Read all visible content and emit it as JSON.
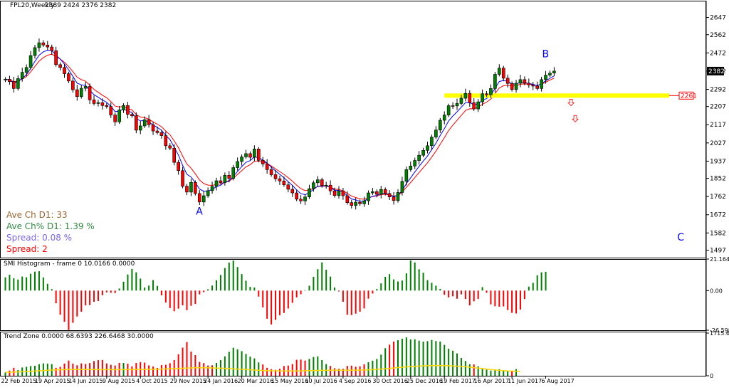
{
  "chart_data": [
    {
      "type": "candlestick",
      "title": "FPL20,Weekly",
      "ohlc_readout": "2389 2424 2376 2382",
      "ylim": [
        1460,
        2730
      ],
      "y_ticks": [
        "2647",
        "2562",
        "2472",
        "2382",
        "2292",
        "2207",
        "2117",
        "2027",
        "1937",
        "1852",
        "1762",
        "1672",
        "1582",
        "1497"
      ],
      "y_tick_values": [
        2647,
        2562,
        2472,
        2382,
        2292,
        2207,
        2117,
        2027,
        1937,
        1852,
        1762,
        1672,
        1582,
        1497
      ],
      "x_ticks": [
        "22 Feb 2015",
        "19 Apr 2015",
        "14 Jun 2015",
        "9 Aug 2015",
        "4 Oct 2015",
        "29 Nov 2015",
        "24 Jan 2016",
        "20 Mar 2016",
        "15 May 2016",
        "10 Jul 2016",
        "4 Sep 2016",
        "30 Oct 2016",
        "25 Dec 2016",
        "19 Feb 2017",
        "16 Apr 2017",
        "11 Jun 2017",
        "6 Aug 2017"
      ],
      "x_tick_bar_index": [
        0,
        8,
        16,
        24,
        32,
        40,
        48,
        56,
        64,
        72,
        80,
        88,
        96,
        104,
        112,
        120,
        128
      ],
      "current_price_label": "2382",
      "current_price": 2382,
      "level_label": "2261",
      "level_value": 2261,
      "level_color": "#ffff00",
      "level_start_bar": 104,
      "pivot_labels": [
        {
          "text": "A",
          "bar": 46,
          "price": 1672
        },
        {
          "text": "B",
          "bar": 128,
          "price": 2450
        },
        {
          "text": "C",
          "bar": 160,
          "price": 1545
        }
      ],
      "arrows": [
        {
          "bar": 134,
          "price": 2225
        },
        {
          "bar": 135,
          "price": 2145
        }
      ],
      "bull_color": "#008000",
      "bear_color": "#ff0000",
      "ma_fast_color": "#0000ff",
      "ma_slow_color": "#ff0000",
      "close": [
        2342,
        2330,
        2296,
        2345,
        2376,
        2400,
        2459,
        2498,
        2522,
        2511,
        2501,
        2483,
        2414,
        2400,
        2369,
        2333,
        2290,
        2256,
        2297,
        2306,
        2240,
        2222,
        2226,
        2212,
        2207,
        2165,
        2131,
        2190,
        2212,
        2168,
        2161,
        2090,
        2111,
        2142,
        2117,
        2086,
        2078,
        2063,
        2013,
        2001,
        1931,
        1890,
        1813,
        1784,
        1832,
        1777,
        1735,
        1766,
        1791,
        1812,
        1840,
        1831,
        1867,
        1852,
        1905,
        1935,
        1958,
        1974,
        1956,
        1997,
        1941,
        1923,
        1895,
        1870,
        1850,
        1839,
        1820,
        1798,
        1780,
        1749,
        1740,
        1760,
        1801,
        1830,
        1845,
        1816,
        1818,
        1790,
        1767,
        1790,
        1766,
        1732,
        1718,
        1734,
        1726,
        1741,
        1780,
        1786,
        1773,
        1797,
        1777,
        1760,
        1742,
        1782,
        1837,
        1895,
        1913,
        1940,
        1966,
        1990,
        2013,
        2056,
        2091,
        2139,
        2165,
        2211,
        2210,
        2222,
        2248,
        2272,
        2226,
        2195,
        2230,
        2270,
        2265,
        2296,
        2366,
        2397,
        2347,
        2321,
        2291,
        2322,
        2340,
        2322,
        2314,
        2308,
        2296,
        2340,
        2362,
        2372,
        2382
      ],
      "panes": [
        {
          "title": "SMI Histogram - frame 0 10.0166 0.0000",
          "ylim": [
            -26.5988,
            21.1645
          ],
          "y_ticks": [
            "21.1645",
            "0.00",
            "-26.5988"
          ],
          "y_tick_values": [
            21.1645,
            0,
            -26.5988
          ],
          "values": [
            8.89,
            10.64,
            8.24,
            7.43,
            9.42,
            8.93,
            11.3,
            12.72,
            12.99,
            8.82,
            4.55,
            0.98,
            -8.53,
            -16.23,
            -20.96,
            -26.46,
            -21.65,
            -17.39,
            -14.2,
            -9.93,
            -9.75,
            -7.57,
            -7.01,
            -3.15,
            -1.19,
            -1.5,
            -1.68,
            1.4,
            5.99,
            10.81,
            14.56,
            12.26,
            8.06,
            2.09,
            3.37,
            7.05,
            3.14,
            -3.2,
            -8.02,
            -11.73,
            -13.85,
            -12.12,
            -9.91,
            -13.15,
            -10.22,
            -8.98,
            -2.55,
            -1.09,
            0.91,
            3.37,
            6.91,
            10.49,
            15.21,
            18.8,
            20.11,
            15.78,
            11.09,
            6.65,
            2.49,
            2.08,
            -4.02,
            -11.34,
            -18.89,
            -22.75,
            -19.64,
            -16.6,
            -15.04,
            -12.03,
            -8.25,
            -4.55,
            -2.45,
            0.28,
            3.23,
            9.26,
            14.38,
            18.96,
            13.99,
            9.42,
            2.05,
            -0.58,
            -7.52,
            -16.25,
            -16.43,
            -15.49,
            -14.18,
            -11.98,
            -5.41,
            -1.97,
            1.04,
            4.84,
            9.24,
            11.05,
            7.51,
            6.13,
            6.74,
            11.58,
            20.26,
            18.9,
            14.33,
            11.97,
            7.02,
            5.22,
            3.35,
            1.14,
            -2.84,
            -4.58,
            -3.84,
            -5.46,
            -2.55,
            -5.68,
            -9.94,
            -7.21,
            -5.64,
            2.33,
            -1.46,
            -9.28,
            -10.51,
            -10.82,
            -10.63,
            -13.06,
            -14.95,
            -15.38,
            -12.73,
            -5.66,
            2.68,
            5.19,
            10.26,
            12.27,
            12.63
          ]
        },
        {
          "title": "Trend Zone 0.0000 68.6393 226.6468 30.0000",
          "ylim": [
            0,
            1715.634
          ],
          "y_ticks": [
            "1715.634",
            "0"
          ],
          "y_tick_values": [
            1715.634,
            0
          ],
          "signal_color": "#ffd700",
          "values": [
            134.2,
            208.5,
            319.3,
            230.4,
            332.8,
            360.3,
            393.6,
            399.8,
            465.1,
            498.3,
            488.4,
            469.8,
            320.1,
            357.4,
            491.0,
            610.2,
            490.0,
            421.2,
            498.4,
            474.8,
            511.3,
            590.0,
            626.5,
            634.0,
            495.8,
            441.2,
            410.9,
            518.7,
            512.4,
            485.1,
            379.6,
            512.4,
            551.7,
            528.3,
            416.5,
            370.4,
            315.9,
            428.2,
            441.8,
            504.1,
            629.8,
            863.6,
            1128.9,
            1356.4,
            969.8,
            829.4,
            557.3,
            509.7,
            410.9,
            421.1,
            513.3,
            630.4,
            780.5,
            962.6,
            1126.3,
            1062.2,
            990.2,
            876.8,
            768.4,
            699.0,
            536.5,
            455.1,
            319.2,
            263.1,
            237.9,
            281.3,
            390.3,
            409.4,
            469.6,
            641.8,
            651.0,
            610.2,
            678.2,
            754.9,
            779.3,
            629.7,
            470.2,
            394.0,
            302.0,
            279.2,
            281.8,
            394.4,
            406.7,
            361.7,
            379.4,
            460.9,
            545.8,
            605.7,
            676.9,
            850.4,
            1108.5,
            1249.5,
            1376.1,
            1427.4,
            1490.1,
            1541.3,
            1460.3,
            1465.5,
            1409.4,
            1373.8,
            1390.8,
            1439.8,
            1395.6,
            1375.2,
            1241.6,
            1089.3,
            1006.8,
            899.8,
            716.6,
            595.6,
            464.2,
            456.7,
            382.6,
            290.8,
            246.4,
            207.6,
            258.7,
            262.2,
            217.9,
            199.5,
            197.0,
            265.8
          ],
          "signal": [
            140.0,
            144.0,
            150.0,
            155.0,
            162.0,
            170.0,
            180.0,
            190.0,
            200.0,
            210.0,
            220.0,
            229.0,
            237.0,
            243.0,
            246.0,
            248.0,
            249.0,
            249.0,
            249.0,
            249.0,
            248.0,
            248.0,
            247.0,
            247.0,
            247.0,
            247.0,
            247.0,
            247.0,
            247.0,
            247.0,
            247.0,
            248.0,
            250.0,
            253.0,
            256.0,
            259.0,
            263.0,
            268.0,
            274.0,
            281.0,
            288.0,
            295.0,
            302.0,
            309.0,
            315.0,
            319.0,
            321.0,
            321.0,
            319.0,
            315.0,
            310.0,
            303.0,
            296.0,
            288.0,
            279.0,
            269.0,
            259.0,
            249.0,
            239.0,
            229.0,
            220.0,
            212.0,
            205.0,
            200.0,
            196.0,
            193.0,
            192.0,
            192.0,
            193.0,
            195.0,
            198.0,
            202.0,
            206.0,
            210.0,
            214.0,
            218.0,
            221.0,
            224.0,
            226.0,
            227.0,
            227.0,
            227.0,
            227.0,
            227.0,
            228.0,
            231.0,
            237.0,
            245.0,
            256.0,
            269.0,
            283.0,
            298.0,
            313.0,
            328.0,
            343.0,
            357.0,
            369.0,
            380.0,
            389.0,
            397.0,
            403.0,
            407.0,
            409.0,
            409.0,
            407.0,
            403.0,
            396.0,
            387.0,
            376.0,
            362.0,
            346.0,
            328.0,
            308.0,
            288.0,
            268.0,
            249.0,
            232.0,
            217.0,
            205.0,
            195.0,
            188.0,
            183.0,
            180.0
          ]
        }
      ]
    }
  ],
  "info_box": {
    "ave_ch": "Ave Ch D1: 33",
    "ave_ch_pct": "Ave Ch% D1: 1.39 %",
    "spread_pct": "Spread: 0.08 %",
    "spread": "Spread: 2",
    "colors": [
      "#996633",
      "#338844",
      "#7b68ee",
      "#ff0000"
    ]
  }
}
